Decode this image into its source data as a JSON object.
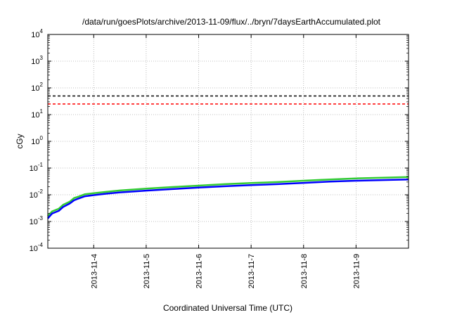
{
  "chart_data": {
    "type": "line",
    "title": "/data/run/goesPlots/archive/2013-11-09/flux/../bryn/7daysEarthAccumulated.plot",
    "xlabel": "Coordinated Universal Time (UTC)",
    "ylabel": "cGy",
    "y_scale": "log",
    "ylim": [
      0.0001,
      10000
    ],
    "y_ticks": [
      {
        "base": "10",
        "exp": "-4",
        "value": 0.0001
      },
      {
        "base": "10",
        "exp": "-3",
        "value": 0.001
      },
      {
        "base": "10",
        "exp": "-2",
        "value": 0.01
      },
      {
        "base": "10",
        "exp": "-1",
        "value": 0.1
      },
      {
        "base": "10",
        "exp": "0",
        "value": 1
      },
      {
        "base": "10",
        "exp": "1",
        "value": 10
      },
      {
        "base": "10",
        "exp": "2",
        "value": 100
      },
      {
        "base": "10",
        "exp": "3",
        "value": 1000
      },
      {
        "base": "10",
        "exp": "4",
        "value": 10000
      }
    ],
    "xlim": [
      "2013-11-03 03:00",
      "2013-11-10 00:00"
    ],
    "x_ticks": [
      "2013-11-4",
      "2013-11-5",
      "2013-11-6",
      "2013-11-7",
      "2013-11-8",
      "2013-11-9"
    ],
    "x_tick_dates": [
      "2013-11-04",
      "2013-11-05",
      "2013-11-06",
      "2013-11-07",
      "2013-11-08",
      "2013-11-09"
    ],
    "grid": true,
    "thresholds": [
      {
        "value": 50,
        "color": "#000000",
        "style": "dashed"
      },
      {
        "value": 25,
        "color": "#ff0000",
        "style": "dashed"
      }
    ],
    "series": [
      {
        "color": "#33cc33",
        "x": [
          "2013-11-03 03:00",
          "2013-11-03 05:00",
          "2013-11-03 08:00",
          "2013-11-03 10:00",
          "2013-11-03 13:00",
          "2013-11-03 15:00",
          "2013-11-03 17:00",
          "2013-11-03 20:00",
          "2013-11-04 00:00",
          "2013-11-04 06:00",
          "2013-11-04 12:00",
          "2013-11-05 00:00",
          "2013-11-05 12:00",
          "2013-11-06 00:00",
          "2013-11-06 12:00",
          "2013-11-07 00:00",
          "2013-11-07 12:00",
          "2013-11-08 00:00",
          "2013-11-08 12:00",
          "2013-11-09 00:00",
          "2013-11-09 12:00",
          "2013-11-10 00:00"
        ],
        "values": [
          0.0016,
          0.0024,
          0.003,
          0.0042,
          0.0055,
          0.0075,
          0.0085,
          0.0105,
          0.0115,
          0.013,
          0.0145,
          0.017,
          0.0195,
          0.022,
          0.025,
          0.0275,
          0.03,
          0.0335,
          0.0375,
          0.041,
          0.0435,
          0.046
        ]
      },
      {
        "color": "#0000ff",
        "x": [
          "2013-11-03 03:00",
          "2013-11-03 05:00",
          "2013-11-03 08:00",
          "2013-11-03 10:00",
          "2013-11-03 13:00",
          "2013-11-03 15:00",
          "2013-11-03 17:00",
          "2013-11-03 20:00",
          "2013-11-04 00:00",
          "2013-11-04 06:00",
          "2013-11-04 12:00",
          "2013-11-05 00:00",
          "2013-11-05 12:00",
          "2013-11-06 00:00",
          "2013-11-06 12:00",
          "2013-11-07 00:00",
          "2013-11-07 12:00",
          "2013-11-08 00:00",
          "2013-11-08 12:00",
          "2013-11-09 00:00",
          "2013-11-09 12:00",
          "2013-11-10 00:00"
        ],
        "values": [
          0.0013,
          0.002,
          0.0025,
          0.0035,
          0.0047,
          0.0062,
          0.0072,
          0.0088,
          0.0097,
          0.011,
          0.0123,
          0.0143,
          0.0163,
          0.0185,
          0.0208,
          0.023,
          0.025,
          0.0278,
          0.031,
          0.0335,
          0.0355,
          0.0375
        ]
      }
    ]
  }
}
